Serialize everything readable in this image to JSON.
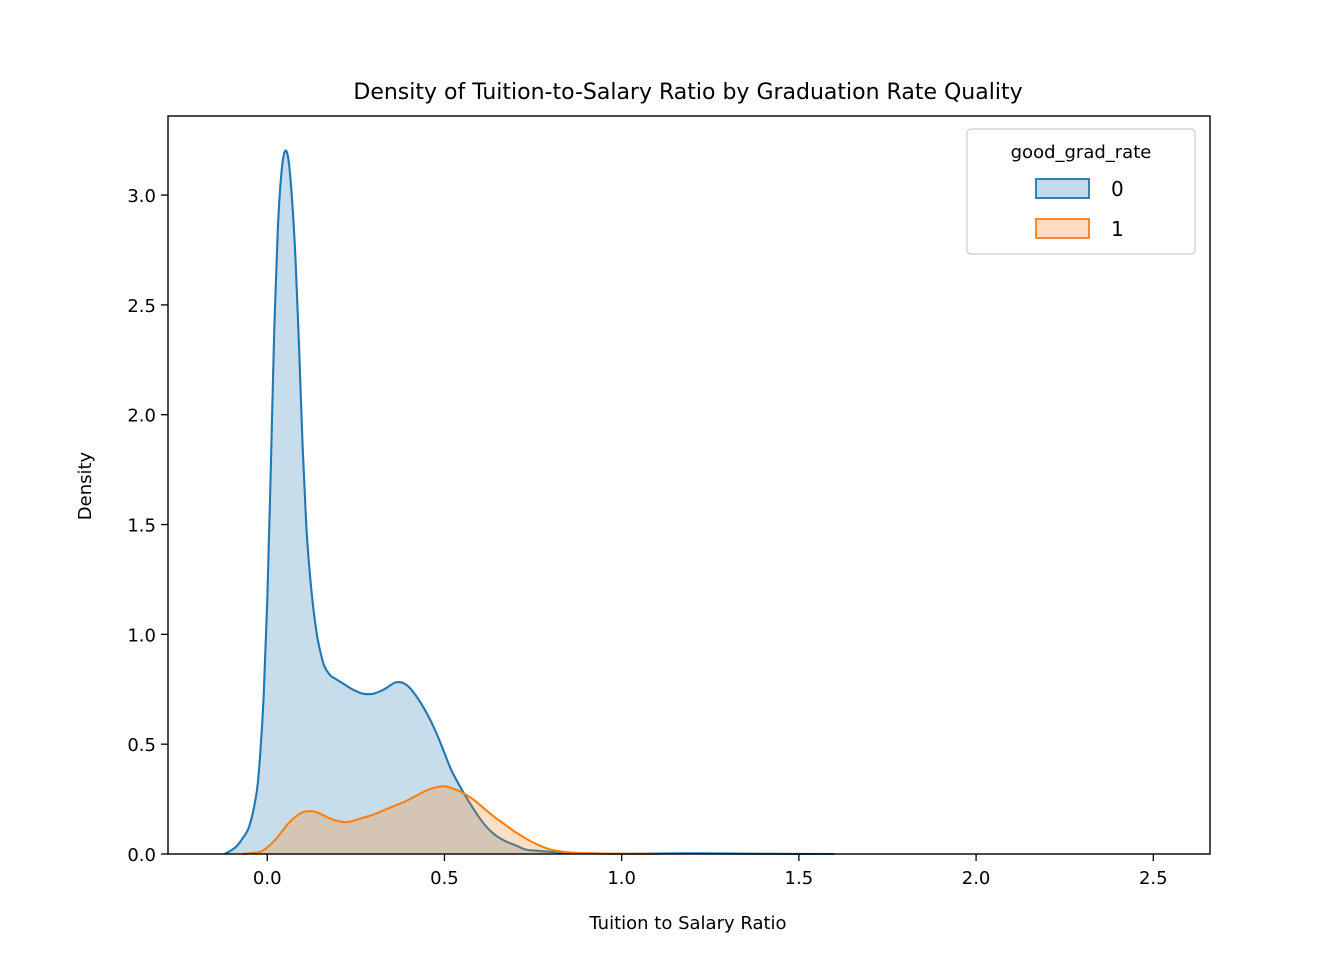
{
  "chart_data": {
    "type": "area",
    "title": "Density of Tuition-to-Salary Ratio by Graduation Rate Quality",
    "xlabel": "Tuition to Salary Ratio",
    "ylabel": "Density",
    "xlim": [
      -0.28,
      2.66
    ],
    "ylim": [
      0,
      3.36
    ],
    "xticks": [
      0.0,
      0.5,
      1.0,
      1.5,
      2.0,
      2.5
    ],
    "xtick_labels": [
      "0.0",
      "0.5",
      "1.0",
      "1.5",
      "2.0",
      "2.5"
    ],
    "yticks": [
      0.0,
      0.5,
      1.0,
      1.5,
      2.0,
      2.5,
      3.0
    ],
    "ytick_labels": [
      "0.0",
      "0.5",
      "1.0",
      "1.5",
      "2.0",
      "2.5",
      "3.0"
    ],
    "grid": false,
    "legend": {
      "title": "good_grad_rate",
      "placement": "top-right"
    },
    "series": [
      {
        "name": "0",
        "line_color": "#1f77b4",
        "fill_color": "#c5daee",
        "x": [
          -0.12,
          -0.09,
          -0.07,
          -0.05,
          -0.03,
          -0.02,
          -0.01,
          0.0,
          0.01,
          0.02,
          0.03,
          0.04,
          0.05,
          0.06,
          0.07,
          0.08,
          0.09,
          0.1,
          0.11,
          0.12,
          0.13,
          0.14,
          0.15,
          0.16,
          0.17,
          0.18,
          0.19,
          0.2,
          0.22,
          0.24,
          0.27,
          0.3,
          0.33,
          0.36,
          0.38,
          0.4,
          0.42,
          0.44,
          0.46,
          0.48,
          0.5,
          0.52,
          0.55,
          0.58,
          0.61,
          0.64,
          0.67,
          0.7,
          0.73,
          0.76,
          0.8,
          0.85,
          0.9,
          0.95,
          1.0,
          1.1,
          1.2,
          1.3,
          1.4,
          1.5,
          1.6
        ],
        "y": [
          0.0,
          0.03,
          0.07,
          0.13,
          0.28,
          0.45,
          0.72,
          1.15,
          1.75,
          2.4,
          2.85,
          3.1,
          3.2,
          3.16,
          2.98,
          2.7,
          2.3,
          1.85,
          1.5,
          1.28,
          1.12,
          1.0,
          0.92,
          0.86,
          0.83,
          0.81,
          0.8,
          0.79,
          0.77,
          0.75,
          0.73,
          0.73,
          0.75,
          0.78,
          0.78,
          0.76,
          0.72,
          0.67,
          0.61,
          0.54,
          0.46,
          0.38,
          0.29,
          0.21,
          0.14,
          0.09,
          0.06,
          0.04,
          0.02,
          0.015,
          0.01,
          0.005,
          0.003,
          0.002,
          0.001,
          0.002,
          0.003,
          0.002,
          0.001,
          0.0005,
          0.0
        ]
      },
      {
        "name": "1",
        "line_color": "#ff7f0e",
        "fill_color": "#ffdcc1",
        "x": [
          -0.07,
          -0.04,
          -0.02,
          0.0,
          0.02,
          0.04,
          0.06,
          0.08,
          0.1,
          0.12,
          0.14,
          0.16,
          0.18,
          0.2,
          0.22,
          0.24,
          0.27,
          0.3,
          0.33,
          0.36,
          0.39,
          0.42,
          0.45,
          0.48,
          0.5,
          0.52,
          0.55,
          0.58,
          0.61,
          0.64,
          0.67,
          0.7,
          0.73,
          0.76,
          0.8,
          0.85,
          0.9,
          0.95,
          1.0,
          1.05,
          1.1
        ],
        "y": [
          0.0,
          0.005,
          0.01,
          0.03,
          0.06,
          0.1,
          0.14,
          0.17,
          0.19,
          0.195,
          0.19,
          0.175,
          0.16,
          0.15,
          0.145,
          0.15,
          0.165,
          0.18,
          0.2,
          0.22,
          0.24,
          0.265,
          0.29,
          0.305,
          0.308,
          0.3,
          0.28,
          0.25,
          0.21,
          0.17,
          0.135,
          0.1,
          0.07,
          0.045,
          0.02,
          0.008,
          0.004,
          0.002,
          0.001,
          0.0005,
          0.0
        ]
      }
    ]
  }
}
